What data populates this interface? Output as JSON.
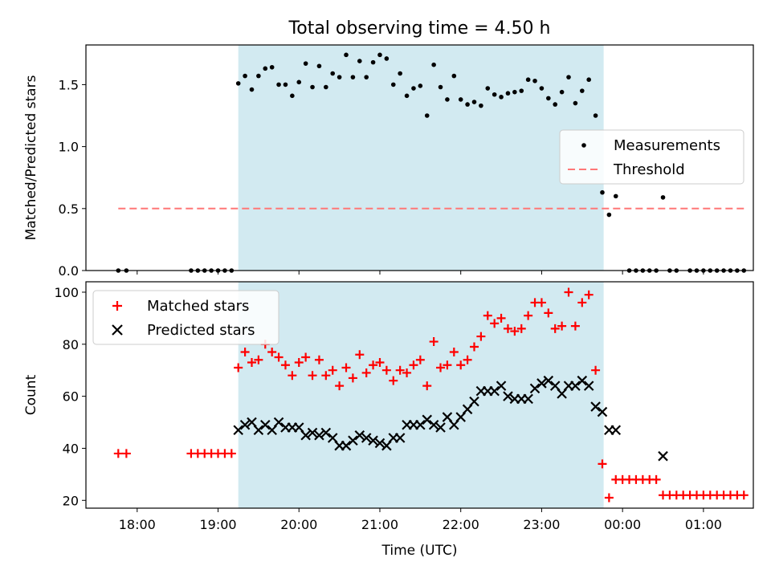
{
  "chart_data": [
    {
      "type": "scatter",
      "title": "Total observing time = 4.50 h",
      "ylabel": "Matched/Predicted stars",
      "xlabel": "",
      "xlim": [
        "17:22",
        "01:37"
      ],
      "ylim": [
        0,
        1.82
      ],
      "yticks": [
        0.0,
        0.5,
        1.0,
        1.5
      ],
      "ytick_labels": [
        "0.0",
        "0.5",
        "1.0",
        "1.5"
      ],
      "xticks": [
        "18:00",
        "19:00",
        "20:00",
        "21:00",
        "22:00",
        "23:00",
        "00:00",
        "01:00"
      ],
      "shaded_span": [
        "19:15",
        "23:46"
      ],
      "shaded_color": "#add8e6",
      "legend": {
        "placement": "center-right",
        "entries": [
          "Measurements",
          "Threshold"
        ]
      },
      "series": [
        {
          "name": "Measurements",
          "marker": "dot",
          "color": "#000000",
          "x": [
            "17:46",
            "17:52",
            "18:40",
            "18:45",
            "18:50",
            "18:55",
            "19:00",
            "19:05",
            "19:10",
            "19:15",
            "19:20",
            "19:25",
            "19:30",
            "19:35",
            "19:40",
            "19:45",
            "19:50",
            "19:55",
            "20:00",
            "20:05",
            "20:10",
            "20:15",
            "20:20",
            "20:25",
            "20:30",
            "20:35",
            "20:40",
            "20:45",
            "20:50",
            "20:55",
            "21:00",
            "21:05",
            "21:10",
            "21:15",
            "21:20",
            "21:25",
            "21:30",
            "21:35",
            "21:40",
            "21:45",
            "21:50",
            "21:55",
            "22:00",
            "22:05",
            "22:10",
            "22:15",
            "22:20",
            "22:25",
            "22:30",
            "22:35",
            "22:40",
            "22:45",
            "22:50",
            "22:55",
            "23:00",
            "23:05",
            "23:10",
            "23:15",
            "23:20",
            "23:25",
            "23:30",
            "23:35",
            "23:40",
            "23:45",
            "23:50",
            "23:55",
            "00:05",
            "00:10",
            "00:15",
            "00:20",
            "00:25",
            "00:30",
            "00:35",
            "00:40",
            "00:50",
            "00:55",
            "01:00",
            "01:05",
            "01:10",
            "01:15",
            "01:20",
            "01:25",
            "01:30"
          ],
          "y": [
            0,
            0,
            0,
            0,
            0,
            0,
            0,
            0,
            0,
            1.51,
            1.57,
            1.46,
            1.57,
            1.63,
            1.64,
            1.5,
            1.5,
            1.41,
            1.52,
            1.67,
            1.48,
            1.65,
            1.48,
            1.59,
            1.56,
            1.74,
            1.56,
            1.69,
            1.56,
            1.68,
            1.74,
            1.71,
            1.5,
            1.59,
            1.41,
            1.47,
            1.49,
            1.25,
            1.66,
            1.48,
            1.38,
            1.57,
            1.38,
            1.34,
            1.36,
            1.33,
            1.47,
            1.42,
            1.4,
            1.43,
            1.44,
            1.45,
            1.54,
            1.53,
            1.47,
            1.39,
            1.34,
            1.44,
            1.56,
            1.35,
            1.45,
            1.54,
            1.25,
            0.63,
            0.45,
            0.6,
            0,
            0,
            0,
            0,
            0,
            0.59,
            0,
            0,
            0,
            0,
            0,
            0,
            0,
            0,
            0,
            0,
            0
          ]
        },
        {
          "name": "Threshold",
          "line_style": "dashed",
          "color": "#ff7777",
          "x": [
            "17:46",
            "01:30"
          ],
          "y": [
            0.5,
            0.5
          ]
        }
      ]
    },
    {
      "type": "scatter",
      "title": "",
      "ylabel": "Count",
      "xlabel": "Time (UTC)",
      "xlim": [
        "17:22",
        "01:37"
      ],
      "ylim": [
        17,
        104
      ],
      "yticks": [
        20,
        40,
        60,
        80,
        100
      ],
      "ytick_labels": [
        "20",
        "40",
        "60",
        "80",
        "100"
      ],
      "xticks": [
        "18:00",
        "19:00",
        "20:00",
        "21:00",
        "22:00",
        "23:00",
        "00:00",
        "01:00"
      ],
      "shaded_span": [
        "19:15",
        "23:46"
      ],
      "shaded_color": "#add8e6",
      "legend": {
        "placement": "upper-left",
        "entries": [
          "Matched stars",
          "Predicted stars"
        ]
      },
      "series": [
        {
          "name": "Matched stars",
          "marker": "plus",
          "color": "#ff0000",
          "x": [
            "17:46",
            "17:52",
            "18:40",
            "18:45",
            "18:50",
            "18:55",
            "19:00",
            "19:05",
            "19:10",
            "19:15",
            "19:20",
            "19:25",
            "19:30",
            "19:35",
            "19:40",
            "19:45",
            "19:50",
            "19:55",
            "20:00",
            "20:05",
            "20:10",
            "20:15",
            "20:20",
            "20:25",
            "20:30",
            "20:35",
            "20:40",
            "20:45",
            "20:50",
            "20:55",
            "21:00",
            "21:05",
            "21:10",
            "21:15",
            "21:20",
            "21:25",
            "21:30",
            "21:35",
            "21:40",
            "21:45",
            "21:50",
            "21:55",
            "22:00",
            "22:05",
            "22:10",
            "22:15",
            "22:20",
            "22:25",
            "22:30",
            "22:35",
            "22:40",
            "22:45",
            "22:50",
            "22:55",
            "23:00",
            "23:05",
            "23:10",
            "23:15",
            "23:20",
            "23:25",
            "23:30",
            "23:35",
            "23:40",
            "23:45",
            "23:50",
            "23:55",
            "00:00",
            "00:05",
            "00:10",
            "00:15",
            "00:20",
            "00:25",
            "00:30",
            "00:35",
            "00:40",
            "00:45",
            "00:50",
            "00:55",
            "01:00",
            "01:05",
            "01:10",
            "01:15",
            "01:20",
            "01:25",
            "01:30"
          ],
          "y": [
            38,
            38,
            38,
            38,
            38,
            38,
            38,
            38,
            38,
            71,
            77,
            73,
            74,
            80,
            77,
            75,
            72,
            68,
            73,
            75,
            68,
            74,
            68,
            70,
            64,
            71,
            67,
            76,
            69,
            72,
            73,
            70,
            66,
            70,
            69,
            72,
            74,
            64,
            81,
            71,
            72,
            77,
            72,
            74,
            79,
            83,
            91,
            88,
            90,
            86,
            85,
            86,
            91,
            96,
            96,
            92,
            86,
            87,
            100,
            87,
            96,
            99,
            70,
            34,
            21,
            28,
            28,
            28,
            28,
            28,
            28,
            28,
            22,
            22,
            22,
            22,
            22,
            22,
            22,
            22,
            22,
            22,
            22,
            22,
            22
          ]
        },
        {
          "name": "Predicted stars",
          "marker": "x",
          "color": "#000000",
          "x": [
            "19:15",
            "19:20",
            "19:25",
            "19:30",
            "19:35",
            "19:40",
            "19:45",
            "19:50",
            "19:55",
            "20:00",
            "20:05",
            "20:10",
            "20:15",
            "20:20",
            "20:25",
            "20:30",
            "20:35",
            "20:40",
            "20:45",
            "20:50",
            "20:55",
            "21:00",
            "21:05",
            "21:10",
            "21:15",
            "21:20",
            "21:25",
            "21:30",
            "21:35",
            "21:40",
            "21:45",
            "21:50",
            "21:55",
            "22:00",
            "22:05",
            "22:10",
            "22:15",
            "22:20",
            "22:25",
            "22:30",
            "22:35",
            "22:40",
            "22:45",
            "22:50",
            "22:55",
            "23:00",
            "23:05",
            "23:10",
            "23:15",
            "23:20",
            "23:25",
            "23:30",
            "23:35",
            "23:40",
            "23:45",
            "23:50",
            "23:55",
            "00:30"
          ],
          "y": [
            47,
            49,
            50,
            47,
            49,
            47,
            50,
            48,
            48,
            48,
            45,
            46,
            45,
            46,
            44,
            41,
            41,
            43,
            45,
            44,
            43,
            42,
            41,
            44,
            44,
            49,
            49,
            49,
            51,
            49,
            48,
            52,
            49,
            52,
            55,
            58,
            62,
            62,
            62,
            64,
            60,
            59,
            59,
            59,
            63,
            65,
            66,
            64,
            61,
            64,
            64,
            66,
            64,
            56,
            54,
            47,
            47,
            37
          ]
        }
      ]
    }
  ]
}
